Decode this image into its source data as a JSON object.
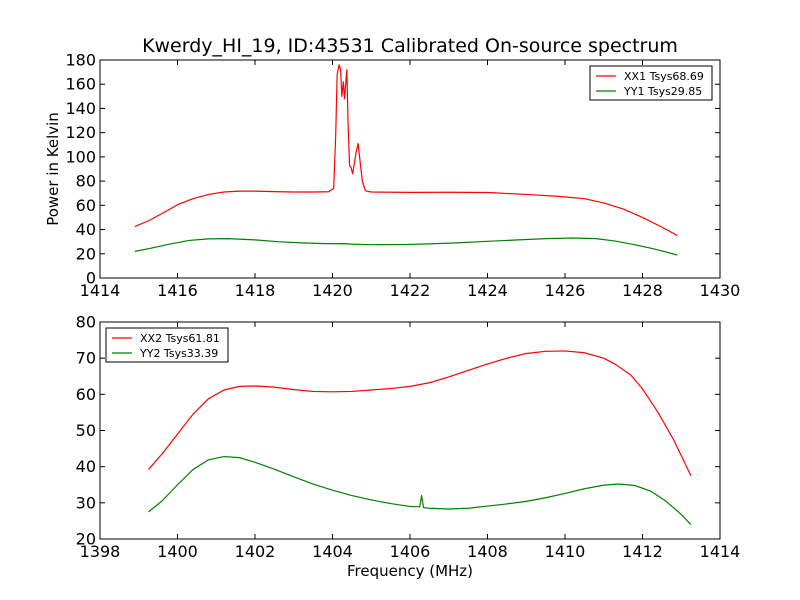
{
  "chart_data": [
    {
      "type": "line",
      "title": "Kwerdy_HI_19, ID:43531 Calibrated On-source spectrum",
      "xlabel": "",
      "ylabel": "Power in Kelvin",
      "xlim": [
        1414,
        1430
      ],
      "ylim": [
        0,
        180
      ],
      "xticks": [
        1414,
        1416,
        1418,
        1420,
        1422,
        1424,
        1426,
        1428,
        1430
      ],
      "yticks": [
        0,
        20,
        40,
        60,
        80,
        100,
        120,
        140,
        160,
        180
      ],
      "legend_position": "top-right",
      "grid": false,
      "series": [
        {
          "name": "XX1 Tsys68.69",
          "color": "#ff0000",
          "points": [
            [
              1414.9,
              42.5
            ],
            [
              1415.3,
              48
            ],
            [
              1415.7,
              55
            ],
            [
              1416.0,
              60.5
            ],
            [
              1416.4,
              65.5
            ],
            [
              1416.8,
              69
            ],
            [
              1417.2,
              71
            ],
            [
              1417.6,
              71.7
            ],
            [
              1418.0,
              71.7
            ],
            [
              1418.5,
              71.3
            ],
            [
              1419.0,
              71.0
            ],
            [
              1419.5,
              71.0
            ],
            [
              1419.9,
              71.2
            ],
            [
              1420.03,
              74
            ],
            [
              1420.08,
              115
            ],
            [
              1420.12,
              168
            ],
            [
              1420.17,
              176
            ],
            [
              1420.21,
              172
            ],
            [
              1420.24,
              150
            ],
            [
              1420.28,
              162
            ],
            [
              1420.31,
              148
            ],
            [
              1420.34,
              160
            ],
            [
              1420.37,
              172
            ],
            [
              1420.4,
              130
            ],
            [
              1420.44,
              93
            ],
            [
              1420.48,
              91
            ],
            [
              1420.52,
              86
            ],
            [
              1420.56,
              94
            ],
            [
              1420.61,
              104
            ],
            [
              1420.66,
              111
            ],
            [
              1420.71,
              97
            ],
            [
              1420.77,
              80
            ],
            [
              1420.85,
              72
            ],
            [
              1421.0,
              71
            ],
            [
              1422.0,
              70.7
            ],
            [
              1423.0,
              70.8
            ],
            [
              1424.0,
              70.6
            ],
            [
              1425.0,
              69
            ],
            [
              1425.8,
              67.5
            ],
            [
              1426.5,
              65.5
            ],
            [
              1427.0,
              62
            ],
            [
              1427.5,
              57
            ],
            [
              1428.0,
              50
            ],
            [
              1428.5,
              42
            ],
            [
              1428.9,
              35
            ]
          ]
        },
        {
          "name": "YY1 Tsys29.85",
          "color": "#008000",
          "points": [
            [
              1414.9,
              22
            ],
            [
              1415.3,
              24.5
            ],
            [
              1415.8,
              28
            ],
            [
              1416.3,
              31
            ],
            [
              1416.8,
              32.3
            ],
            [
              1417.3,
              32.5
            ],
            [
              1418.0,
              31.5
            ],
            [
              1418.6,
              30
            ],
            [
              1419.2,
              29
            ],
            [
              1419.7,
              28.5
            ],
            [
              1420.1,
              28.3
            ],
            [
              1420.3,
              28.4
            ],
            [
              1420.5,
              28.0
            ],
            [
              1421.0,
              27.5
            ],
            [
              1421.8,
              27.6
            ],
            [
              1422.5,
              28.2
            ],
            [
              1423.2,
              29
            ],
            [
              1424.0,
              30.3
            ],
            [
              1424.8,
              31.5
            ],
            [
              1425.5,
              32.5
            ],
            [
              1426.2,
              33
            ],
            [
              1426.8,
              32.5
            ],
            [
              1427.3,
              30.5
            ],
            [
              1427.8,
              27.5
            ],
            [
              1428.3,
              24
            ],
            [
              1428.9,
              19
            ]
          ]
        }
      ]
    },
    {
      "type": "line",
      "title": "",
      "xlabel": "Frequency (MHz)",
      "ylabel": "",
      "xlim": [
        1398,
        1414
      ],
      "ylim": [
        20,
        80
      ],
      "xticks": [
        1398,
        1400,
        1402,
        1404,
        1406,
        1408,
        1410,
        1412,
        1414
      ],
      "yticks": [
        20,
        30,
        40,
        50,
        60,
        70,
        80
      ],
      "legend_position": "top-left",
      "grid": false,
      "series": [
        {
          "name": "XX2 Tsys61.81",
          "color": "#ff0000",
          "points": [
            [
              1399.25,
              39.2
            ],
            [
              1399.6,
              43.5
            ],
            [
              1400.0,
              49
            ],
            [
              1400.4,
              54.5
            ],
            [
              1400.8,
              58.8
            ],
            [
              1401.2,
              61.2
            ],
            [
              1401.6,
              62.2
            ],
            [
              1402.0,
              62.3
            ],
            [
              1402.5,
              62
            ],
            [
              1403.0,
              61.3
            ],
            [
              1403.5,
              60.8
            ],
            [
              1404.0,
              60.7
            ],
            [
              1404.5,
              60.8
            ],
            [
              1405.0,
              61.2
            ],
            [
              1405.5,
              61.6
            ],
            [
              1406.0,
              62.2
            ],
            [
              1406.5,
              63.2
            ],
            [
              1407.0,
              64.8
            ],
            [
              1407.5,
              66.6
            ],
            [
              1408.0,
              68.4
            ],
            [
              1408.5,
              70
            ],
            [
              1409.0,
              71.3
            ],
            [
              1409.5,
              71.9
            ],
            [
              1410.0,
              72
            ],
            [
              1410.5,
              71.5
            ],
            [
              1411.0,
              70
            ],
            [
              1411.3,
              68.3
            ],
            [
              1411.7,
              65.3
            ],
            [
              1412.0,
              61.5
            ],
            [
              1412.4,
              55
            ],
            [
              1412.8,
              47.5
            ],
            [
              1413.25,
              37.5
            ]
          ]
        },
        {
          "name": "YY2 Tsys33.39",
          "color": "#008000",
          "points": [
            [
              1399.25,
              27.5
            ],
            [
              1399.6,
              30.5
            ],
            [
              1400.0,
              35
            ],
            [
              1400.4,
              39.2
            ],
            [
              1400.8,
              41.9
            ],
            [
              1401.2,
              42.8
            ],
            [
              1401.6,
              42.5
            ],
            [
              1402.0,
              41.2
            ],
            [
              1402.5,
              39.3
            ],
            [
              1403.0,
              37.2
            ],
            [
              1403.5,
              35.2
            ],
            [
              1404.0,
              33.5
            ],
            [
              1404.5,
              32.0
            ],
            [
              1405.0,
              30.8
            ],
            [
              1405.5,
              29.8
            ],
            [
              1406.0,
              29.0
            ],
            [
              1406.25,
              28.9
            ],
            [
              1406.3,
              32.0
            ],
            [
              1406.35,
              28.7
            ],
            [
              1406.5,
              28.5
            ],
            [
              1407.0,
              28.3
            ],
            [
              1407.5,
              28.5
            ],
            [
              1408.0,
              29.1
            ],
            [
              1408.5,
              29.7
            ],
            [
              1409.0,
              30.4
            ],
            [
              1409.5,
              31.4
            ],
            [
              1410.0,
              32.6
            ],
            [
              1410.5,
              33.9
            ],
            [
              1411.0,
              34.9
            ],
            [
              1411.4,
              35.2
            ],
            [
              1411.8,
              34.8
            ],
            [
              1412.2,
              33.3
            ],
            [
              1412.6,
              30.5
            ],
            [
              1413.0,
              26.8
            ],
            [
              1413.25,
              24
            ]
          ]
        }
      ]
    }
  ]
}
